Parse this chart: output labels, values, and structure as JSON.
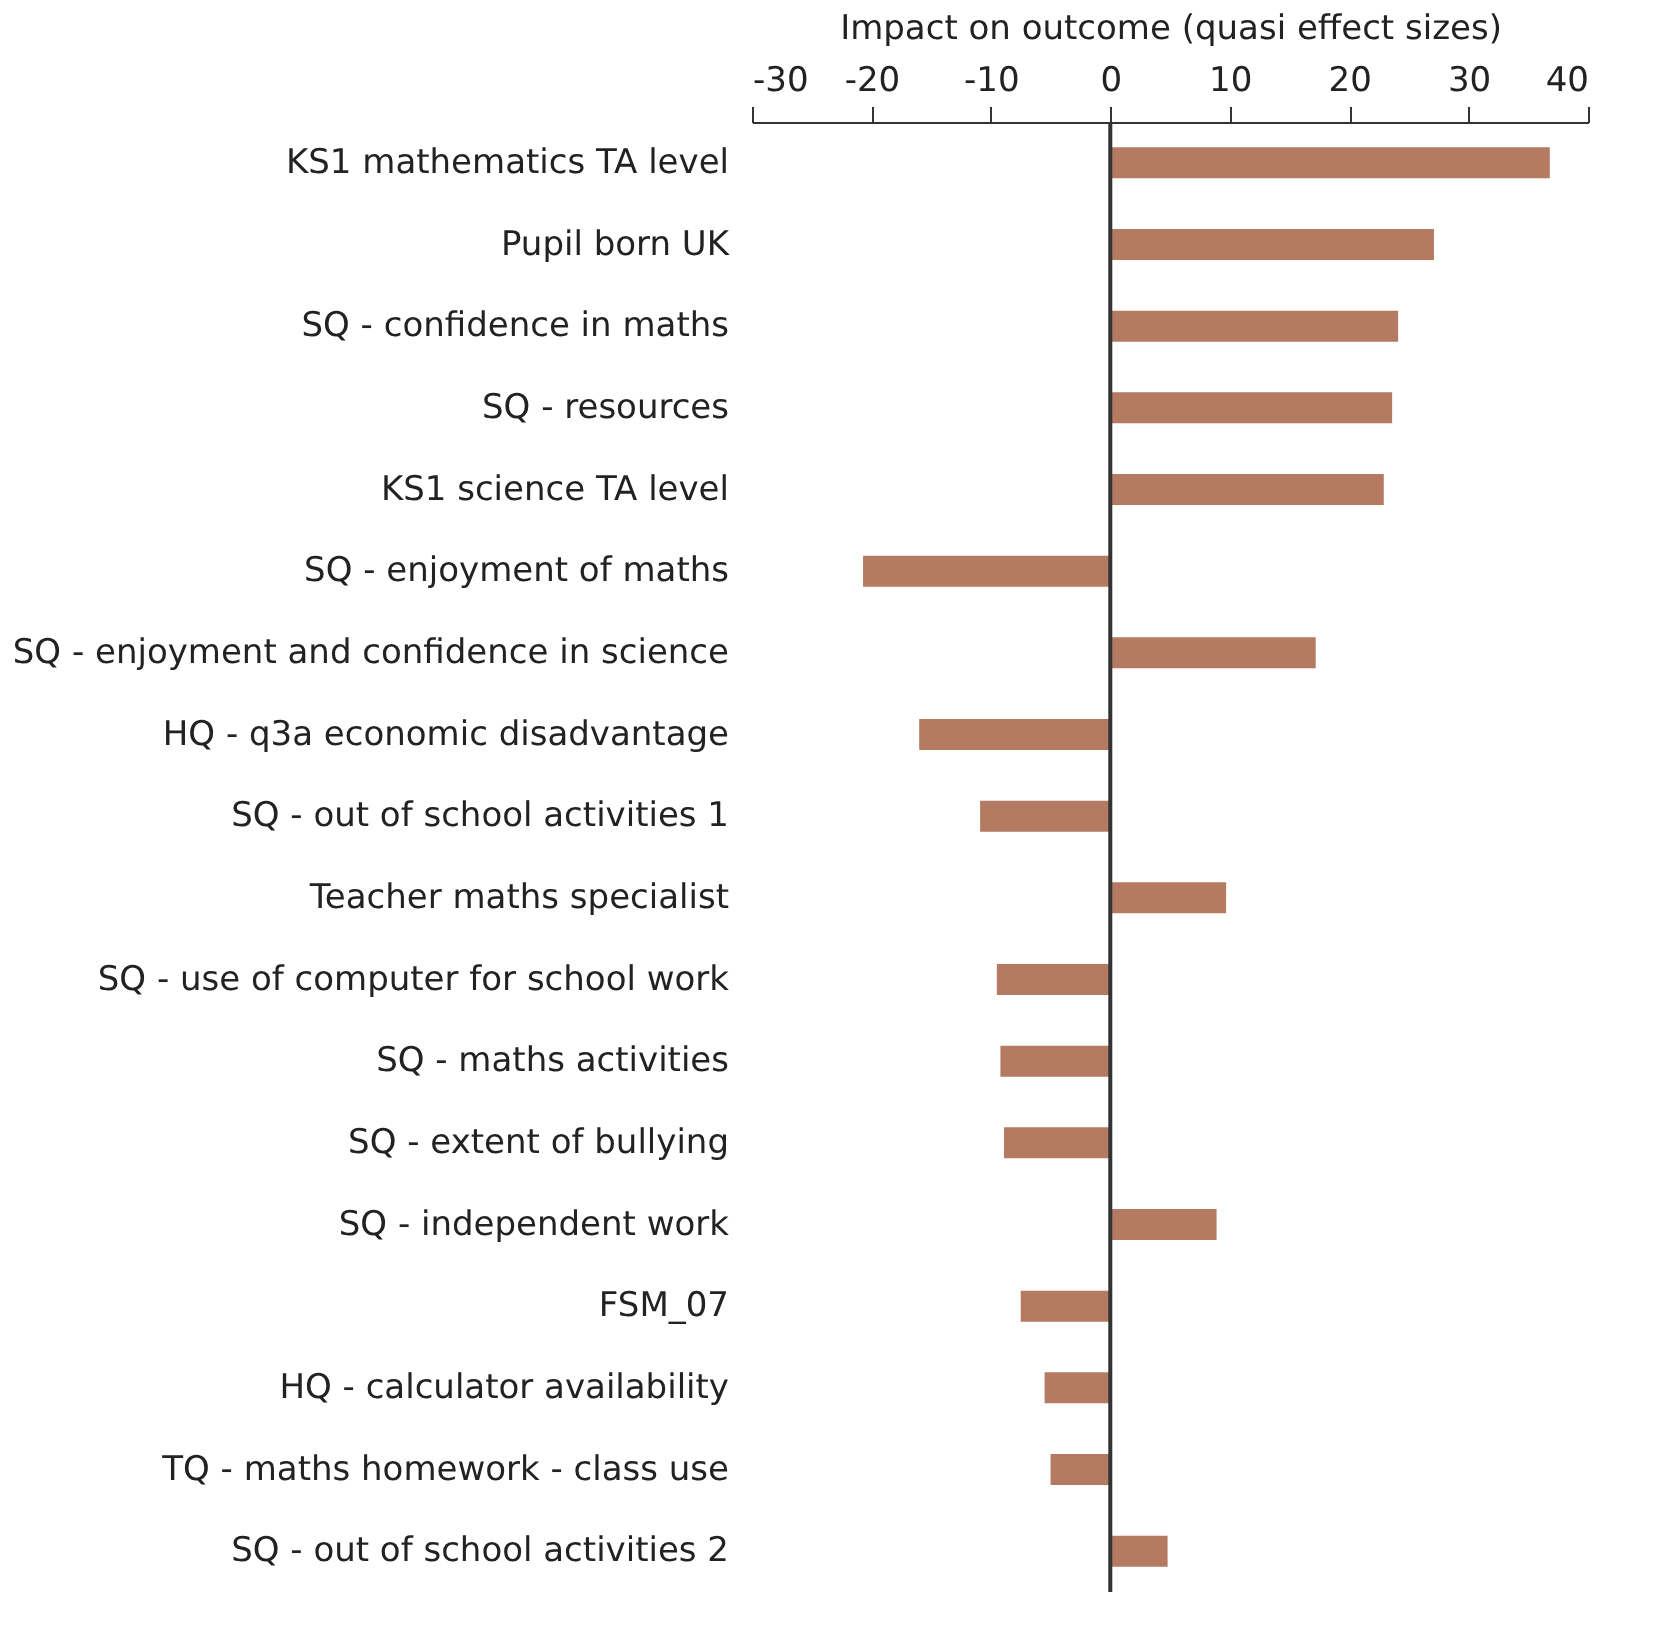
{
  "chart_data": {
    "type": "bar",
    "orientation": "horizontal",
    "xlabel": "Impact on outcome (quasi effect sizes)",
    "categories": [
      "KS1 mathematics TA level",
      "Pupil born UK",
      "SQ - confidence in maths",
      "SQ - resources",
      "KS1 science TA level",
      "SQ - enjoyment of maths",
      "SQ - enjoyment and confidence in science",
      "HQ - q3a economic disadvantage",
      "SQ - out of school activities 1",
      "Teacher maths specialist",
      "SQ - use of computer for school work",
      "SQ - maths activities",
      "SQ - extent of bullying",
      "SQ - independent work",
      "FSM_07",
      "HQ - calculator availability",
      "TQ - maths homework - class use",
      "SQ - out of school activities 2"
    ],
    "values": [
      36.8,
      27.1,
      24.1,
      23.6,
      22.9,
      -20.7,
      17.2,
      -16.0,
      -10.9,
      9.7,
      -9.5,
      -9.2,
      -8.9,
      8.9,
      -7.5,
      -5.5,
      -5.0,
      4.8
    ],
    "color": "#b57a62",
    "xlim": [
      -30,
      40
    ],
    "xticks": [
      -30,
      -20,
      -10,
      0,
      10,
      20,
      30,
      40
    ],
    "ref_lines": [
      {
        "axis": "x",
        "value": 0,
        "color": "#333333"
      }
    ],
    "grid": false
  }
}
